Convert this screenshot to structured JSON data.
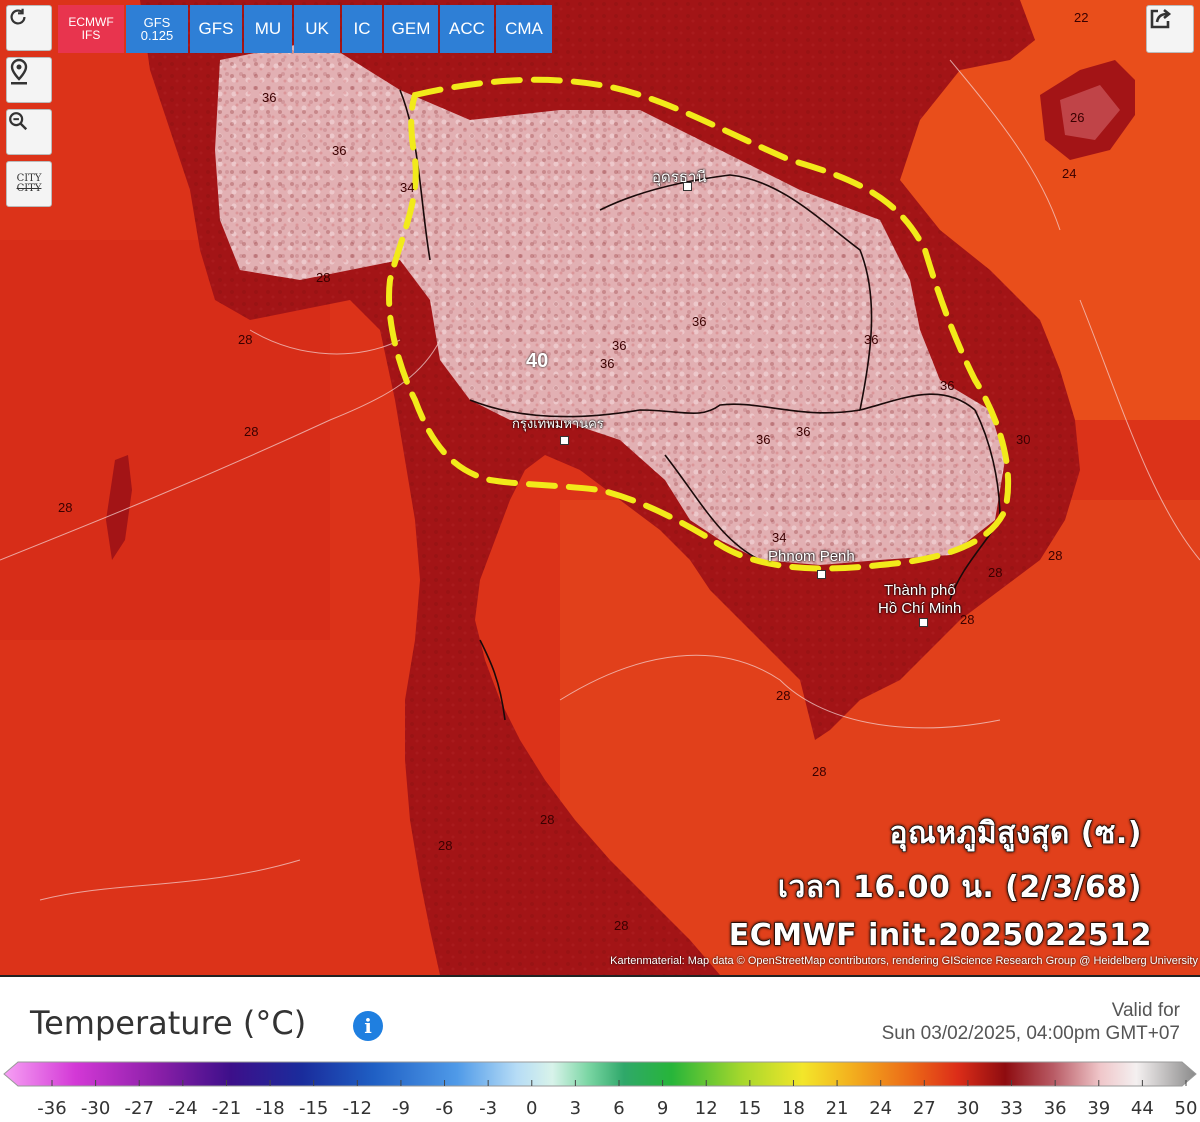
{
  "models": [
    {
      "label": "ECMWF IFS",
      "line1": "ECMWF",
      "line2": "IFS",
      "active": true
    },
    {
      "label": "GFS 0.125",
      "line1": "GFS",
      "line2": "0.125",
      "active": false
    },
    {
      "label": "GFS"
    },
    {
      "label": "MU"
    },
    {
      "label": "UK"
    },
    {
      "label": "IC"
    },
    {
      "label": "GEM"
    },
    {
      "label": "ACC"
    },
    {
      "label": "CMA"
    }
  ],
  "side_buttons": {
    "refresh_icon": "refresh-icon",
    "location_icon": "location-pin-icon",
    "zoom_icon": "zoom-out-icon",
    "city_label": "CITY"
  },
  "overlay": {
    "line1": "อุณหภูมิสูงสุด (ซ.)",
    "line2": "เวลา 16.00 น. (2/3/68)",
    "line3": "ECMWF init.2025022512"
  },
  "cities": {
    "bangkok": "กรุงเทพมหานคร",
    "phnom_penh": "Phnom Penh",
    "hcmc_line1": "Thành phố",
    "hcmc_line2": "Hồ Chí Minh",
    "udon": "อุดรธานี"
  },
  "isolines": [
    "36",
    "36",
    "34",
    "28",
    "28",
    "28",
    "28",
    "40",
    "36",
    "36",
    "36",
    "36",
    "36",
    "36",
    "36",
    "34",
    "28",
    "28",
    "28",
    "28",
    "28",
    "22",
    "24",
    "26",
    "28",
    "30",
    "28",
    "28"
  ],
  "attribution": "Kartenmaterial: Map data © OpenStreetMap contributors, rendering GIScience Research Group @ Heidelberg University",
  "legend": {
    "title": "Temperature (°C)",
    "valid_label": "Valid for",
    "valid_date": "Sun 03/02/2025, 04:00pm GMT+07",
    "ticks": [
      "-36",
      "-30",
      "-27",
      "-24",
      "-21",
      "-18",
      "-15",
      "-12",
      "-9",
      "-6",
      "-3",
      "0",
      "3",
      "6",
      "9",
      "12",
      "15",
      "18",
      "21",
      "24",
      "27",
      "30",
      "33",
      "36",
      "39",
      "44",
      "50"
    ]
  },
  "colors": {
    "sea_hot": "#e2341b",
    "land_hot": "#a31416",
    "land_hottest": "#e8b9bc",
    "highlight_dash": "#f2ea1a",
    "active_model": "#e8344e",
    "model": "#2e7fd6"
  }
}
